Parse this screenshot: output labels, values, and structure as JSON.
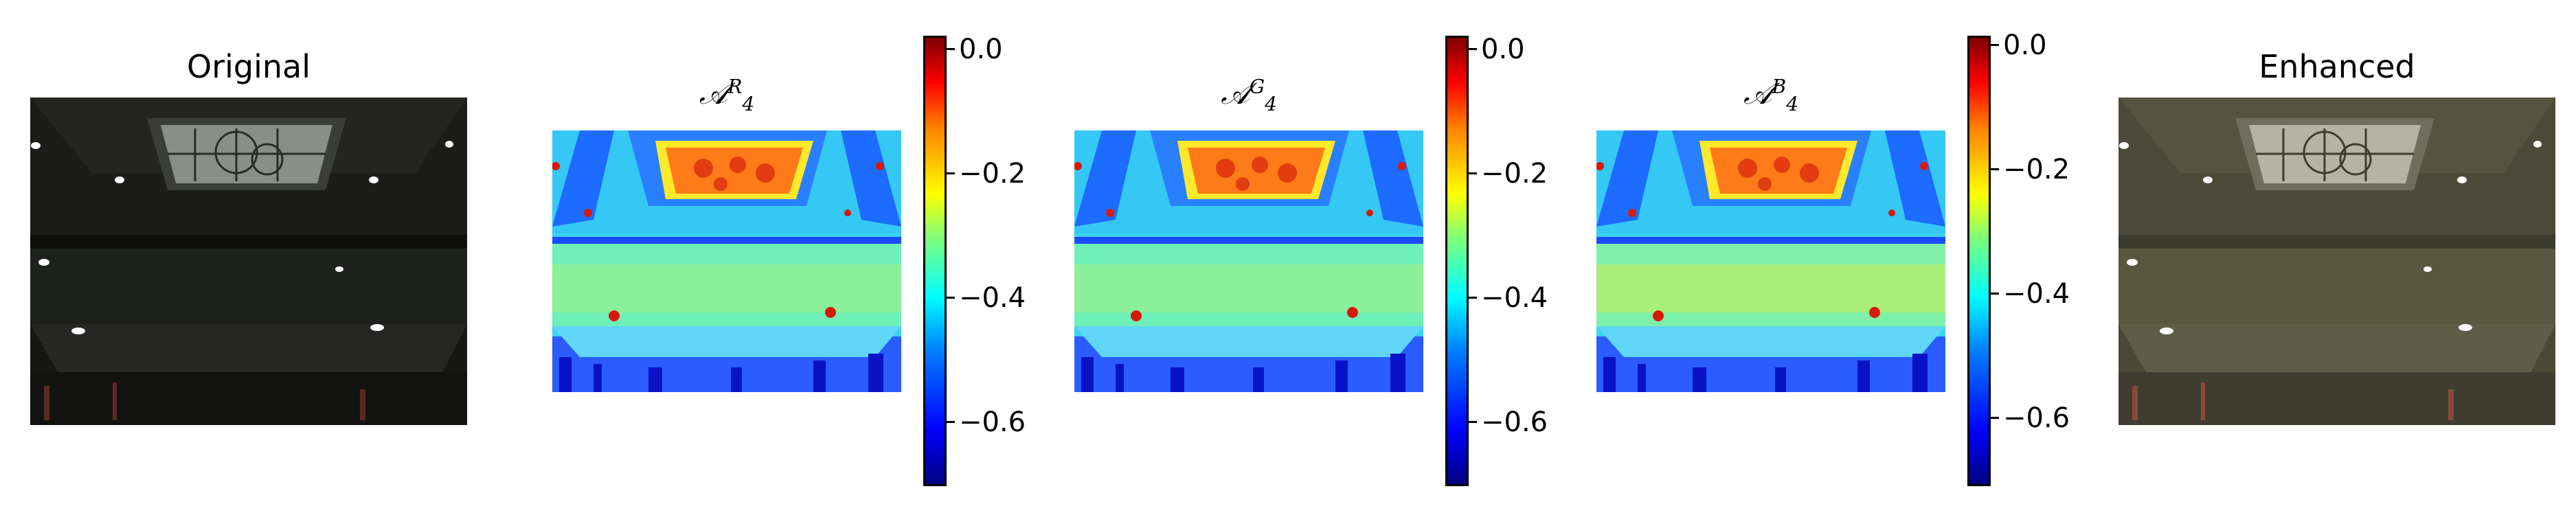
{
  "panels": {
    "original": {
      "title": "Original"
    },
    "map_r": {
      "title_base": "𝒜",
      "title_sup": "R",
      "title_sub": "4"
    },
    "map_g": {
      "title_base": "𝒜",
      "title_sup": "G",
      "title_sub": "4"
    },
    "map_b": {
      "title_base": "𝒜",
      "title_sup": "B",
      "title_sub": "4"
    },
    "enhanced": {
      "title": "Enhanced"
    }
  },
  "colorbar": {
    "colormap": "jet",
    "ticks": [
      "0.0",
      "−0.2",
      "−0.4",
      "−0.6"
    ],
    "range": [
      -0.7,
      0.0
    ]
  },
  "colors": {
    "dark_photo": "#1a1c17",
    "enhanced_tint": "#4e4d3a",
    "jet_low": "#00007f",
    "jet_high": "#7f0000"
  }
}
